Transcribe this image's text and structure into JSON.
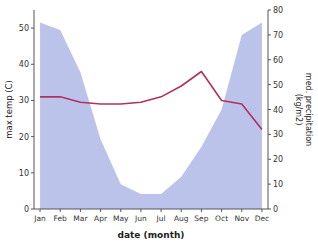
{
  "chart_data": {
    "type": "line",
    "xlabel": "date (month)",
    "ylabel": "max temp (C)",
    "y2label": "med. precipitation\n(kg/m2)",
    "categories": [
      "Jan",
      "Feb",
      "Mar",
      "Apr",
      "May",
      "Jun",
      "Jul",
      "Aug",
      "Sep",
      "Oct",
      "Nov",
      "Dec"
    ],
    "series": [
      {
        "type": "area",
        "axis": "y2",
        "color": "#b0b8e8",
        "values": [
          75,
          72,
          55,
          28,
          10,
          6,
          6,
          13,
          25,
          40,
          70,
          75
        ]
      },
      {
        "type": "line",
        "color": "#b03060",
        "values": [
          31,
          31,
          29.5,
          29,
          29,
          29.5,
          31,
          34,
          38,
          30,
          29,
          22
        ]
      }
    ],
    "ylim": [
      0,
      55
    ],
    "yticks": [
      0,
      10,
      20,
      30,
      40,
      50
    ],
    "y2lim": [
      0,
      80
    ],
    "y2ticks": [
      0,
      10,
      20,
      30,
      40,
      50,
      60,
      70,
      80
    ],
    "grid": false
  }
}
